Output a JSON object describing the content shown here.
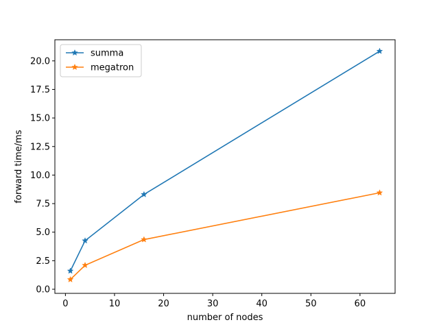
{
  "chart_data": {
    "type": "line",
    "title": "",
    "xlabel": "number of nodes",
    "ylabel": "forward time/ms",
    "xlim": [
      -2.15,
      67.15
    ],
    "ylim": [
      -0.36,
      21.85
    ],
    "xticks": [
      0,
      10,
      20,
      30,
      40,
      50,
      60
    ],
    "yticks": [
      0.0,
      2.5,
      5.0,
      7.5,
      10.0,
      12.5,
      15.0,
      17.5,
      20.0
    ],
    "ytick_labels": [
      "0.0",
      "2.5",
      "5.0",
      "7.5",
      "10.0",
      "12.5",
      "15.0",
      "17.5",
      "20.0"
    ],
    "xtick_labels": [
      "0",
      "10",
      "20",
      "30",
      "40",
      "50",
      "60"
    ],
    "grid": false,
    "legend_position": "top-left",
    "marker": "star",
    "series": [
      {
        "name": "summa",
        "color": "#1f77b4",
        "x": [
          1,
          4,
          16,
          64
        ],
        "y": [
          1.6,
          4.25,
          8.3,
          20.85
        ]
      },
      {
        "name": "megatron",
        "color": "#ff7f0e",
        "x": [
          1,
          4,
          16,
          64
        ],
        "y": [
          0.85,
          2.1,
          4.35,
          8.45
        ]
      }
    ]
  }
}
